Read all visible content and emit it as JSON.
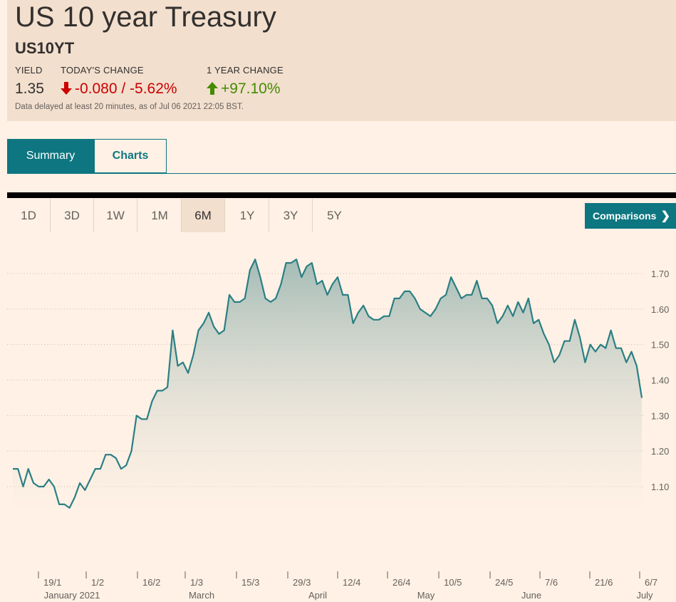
{
  "header": {
    "title": "US 10 year Treasury",
    "symbol": "US10YT",
    "yield_label": "YIELD",
    "yield_value": "1.35",
    "change_label": "TODAY'S CHANGE",
    "change_value": "-0.080 / -5.62%",
    "year_label": "1 YEAR CHANGE",
    "year_value": "+97.10%",
    "note": "Data delayed at least 20 minutes, as of Jul 06 2021 22:05 BST.",
    "colors": {
      "down": "#cc0000",
      "up": "#458b00",
      "accent": "#0d7680"
    }
  },
  "tabs": [
    {
      "label": "Summary",
      "active": true
    },
    {
      "label": "Charts",
      "active": false
    }
  ],
  "ranges": [
    {
      "label": "1D",
      "active": false
    },
    {
      "label": "3D",
      "active": false
    },
    {
      "label": "1W",
      "active": false
    },
    {
      "label": "1M",
      "active": false
    },
    {
      "label": "6M",
      "active": true
    },
    {
      "label": "1Y",
      "active": false
    },
    {
      "label": "3Y",
      "active": false
    },
    {
      "label": "5Y",
      "active": false
    }
  ],
  "comparisons_label": "Comparisons",
  "chart_data": {
    "type": "area",
    "ylim": [
      1.0,
      1.75
    ],
    "yticks": [
      "1.10",
      "1.20",
      "1.30",
      "1.40",
      "1.50",
      "1.60",
      "1.70"
    ],
    "xticks": [
      "19/1",
      "1/2",
      "16/2",
      "1/3",
      "15/3",
      "29/3",
      "12/4",
      "26/4",
      "10/5",
      "24/5",
      "7/6",
      "21/6",
      "6/7"
    ],
    "months": [
      "January 2021",
      "March",
      "April",
      "May",
      "June",
      "July"
    ],
    "line_color": "#2a7f84",
    "grid": true,
    "series": [
      {
        "values": [
          1.15,
          1.15,
          1.1,
          1.15,
          1.11,
          1.1,
          1.1,
          1.12,
          1.1,
          1.05,
          1.05,
          1.04,
          1.07,
          1.11,
          1.09,
          1.12,
          1.15,
          1.15,
          1.19,
          1.19,
          1.18,
          1.15,
          1.16,
          1.2,
          1.3,
          1.29,
          1.29,
          1.34,
          1.37,
          1.37,
          1.38,
          1.54,
          1.44,
          1.45,
          1.42,
          1.47,
          1.54,
          1.56,
          1.59,
          1.55,
          1.53,
          1.54,
          1.64,
          1.62,
          1.62,
          1.63,
          1.71,
          1.74,
          1.69,
          1.63,
          1.62,
          1.63,
          1.67,
          1.73,
          1.73,
          1.74,
          1.69,
          1.72,
          1.73,
          1.67,
          1.68,
          1.64,
          1.67,
          1.69,
          1.64,
          1.64,
          1.56,
          1.59,
          1.61,
          1.58,
          1.57,
          1.57,
          1.58,
          1.58,
          1.63,
          1.63,
          1.65,
          1.65,
          1.63,
          1.6,
          1.59,
          1.58,
          1.6,
          1.63,
          1.64,
          1.69,
          1.66,
          1.63,
          1.64,
          1.64,
          1.68,
          1.63,
          1.63,
          1.61,
          1.56,
          1.58,
          1.61,
          1.58,
          1.62,
          1.59,
          1.63,
          1.56,
          1.57,
          1.53,
          1.5,
          1.45,
          1.47,
          1.51,
          1.51,
          1.57,
          1.52,
          1.45,
          1.5,
          1.48,
          1.5,
          1.49,
          1.54,
          1.49,
          1.49,
          1.45,
          1.48,
          1.44,
          1.35
        ]
      }
    ]
  }
}
